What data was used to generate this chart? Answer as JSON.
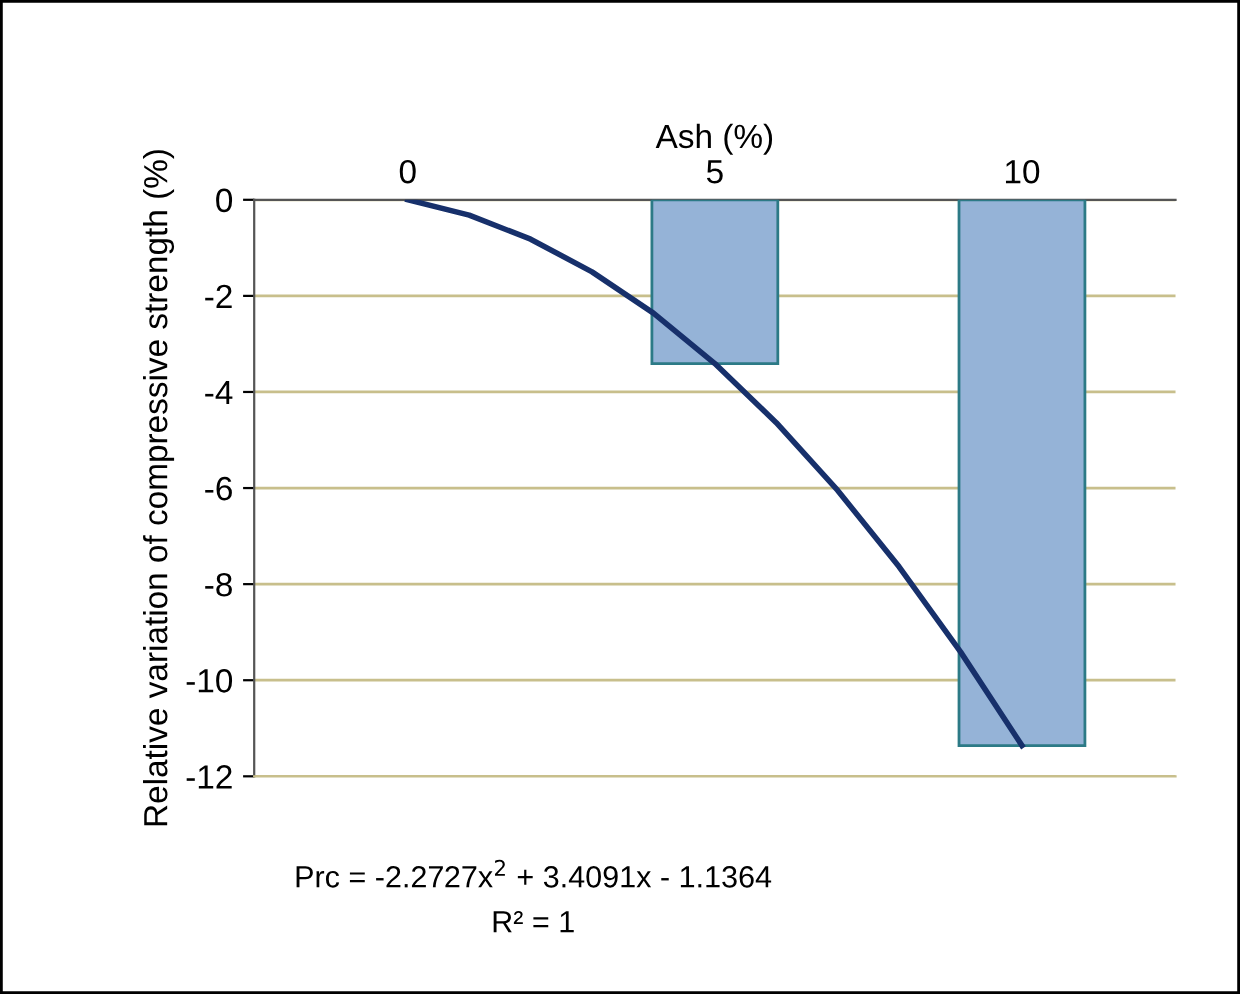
{
  "chart_data": {
    "type": "bar",
    "xlabel": "Ash (%)",
    "ylabel": "Relative variation of compressive strength (%)",
    "series": [
      {
        "x": [
          0,
          5,
          10
        ],
        "values": [
          0,
          -3.41,
          -11.36
        ],
        "color": "#95b3d7"
      },
      {
        "type": "line",
        "x": [
          0,
          1,
          2,
          3,
          4,
          5,
          6,
          7,
          8,
          9,
          10
        ],
        "values": [
          0,
          -0.32,
          -0.82,
          -1.5,
          -2.36,
          -3.41,
          -4.64,
          -6.05,
          -7.64,
          -9.41,
          -11.36
        ],
        "color": "#17306b"
      }
    ],
    "xlim": [
      -2.5,
      12.5
    ],
    "xticks": [
      0,
      5,
      10
    ],
    "ylim": [
      -12,
      0
    ],
    "yticks": [
      0,
      -2,
      -4,
      -6,
      -8,
      -10,
      -12
    ],
    "grid": "y",
    "annotations": [
      "Prc = -2.2727x$^{2}$ + 3.4091x - 1.1364",
      "R² = 1"
    ]
  }
}
